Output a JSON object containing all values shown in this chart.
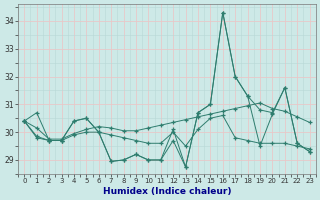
{
  "xlabel": "Humidex (Indice chaleur)",
  "x": [
    0,
    1,
    2,
    3,
    4,
    5,
    6,
    7,
    8,
    9,
    10,
    11,
    12,
    13,
    14,
    15,
    16,
    17,
    18,
    19,
    20,
    21,
    22,
    23
  ],
  "line1": [
    30.4,
    30.7,
    29.7,
    29.7,
    30.4,
    30.5,
    30.0,
    28.95,
    29.0,
    29.2,
    29.0,
    29.0,
    29.7,
    28.75,
    30.7,
    31.0,
    34.3,
    32.0,
    31.3,
    29.5,
    30.65,
    31.6,
    29.6,
    29.3
  ],
  "line2": [
    30.4,
    29.8,
    29.7,
    29.7,
    29.9,
    30.0,
    30.0,
    29.9,
    29.8,
    29.7,
    29.6,
    29.6,
    30.0,
    29.5,
    30.1,
    30.5,
    30.6,
    29.8,
    29.7,
    29.6,
    29.6,
    29.6,
    29.5,
    29.4
  ],
  "line3": [
    30.4,
    29.85,
    29.7,
    29.7,
    30.4,
    30.5,
    30.0,
    28.95,
    29.0,
    29.2,
    29.0,
    29.0,
    30.1,
    28.75,
    30.7,
    31.0,
    34.3,
    32.0,
    31.3,
    30.8,
    30.7,
    31.6,
    29.6,
    29.3
  ],
  "line4": [
    30.4,
    30.15,
    29.75,
    29.75,
    29.95,
    30.1,
    30.2,
    30.15,
    30.05,
    30.05,
    30.15,
    30.25,
    30.35,
    30.45,
    30.55,
    30.65,
    30.75,
    30.85,
    30.95,
    31.05,
    30.85,
    30.75,
    30.55,
    30.35
  ],
  "line_color": "#2e7d6e",
  "bg_color": "#cde9e7",
  "grid_major_color": "#e8c8c8",
  "grid_minor_color": "#b8d8d6",
  "xlabel_color": "#00008b",
  "ylim": [
    28.5,
    34.6
  ],
  "yticks": [
    29,
    30,
    31,
    32,
    33,
    34
  ],
  "xtick_fontsize": 5.0,
  "ytick_fontsize": 5.5,
  "xlabel_fontsize": 6.5
}
